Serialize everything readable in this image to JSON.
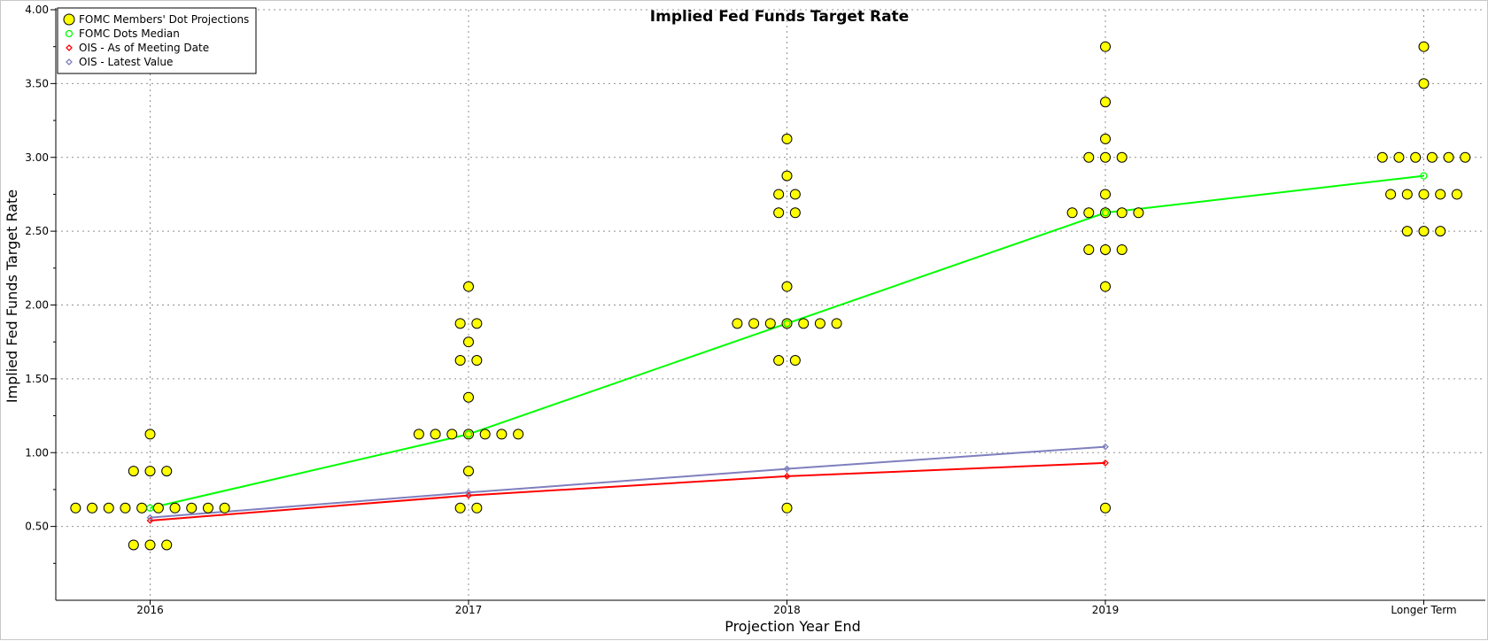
{
  "chart_data": {
    "type": "scatter",
    "title": "Implied Fed Funds Target Rate",
    "xlabel": "Projection Year End",
    "ylabel": "Implied Fed Funds Target Rate",
    "categories": [
      "2016",
      "2017",
      "2018",
      "2019",
      "Longer Term"
    ],
    "ylim": [
      0.0,
      4.0
    ],
    "yticks": [
      "0.50",
      "1.00",
      "1.50",
      "2.00",
      "2.50",
      "3.00",
      "3.50",
      "4.00"
    ],
    "grid": true,
    "legend_position": "top-left",
    "dot_projections": {
      "name": "FOMC Members' Dot Projections",
      "color": "#ffff00",
      "groups": [
        {
          "category": "2016",
          "rows": [
            {
              "value": 1.125,
              "count": 1
            },
            {
              "value": 0.875,
              "count": 3
            },
            {
              "value": 0.625,
              "count": 10
            },
            {
              "value": 0.375,
              "count": 3
            }
          ]
        },
        {
          "category": "2017",
          "rows": [
            {
              "value": 2.125,
              "count": 1
            },
            {
              "value": 1.875,
              "count": 2
            },
            {
              "value": 1.75,
              "count": 1
            },
            {
              "value": 1.625,
              "count": 2
            },
            {
              "value": 1.375,
              "count": 1
            },
            {
              "value": 1.125,
              "count": 7
            },
            {
              "value": 0.875,
              "count": 1
            },
            {
              "value": 0.625,
              "count": 2
            }
          ]
        },
        {
          "category": "2018",
          "rows": [
            {
              "value": 3.125,
              "count": 1
            },
            {
              "value": 2.875,
              "count": 1
            },
            {
              "value": 2.75,
              "count": 2
            },
            {
              "value": 2.625,
              "count": 2
            },
            {
              "value": 2.125,
              "count": 1
            },
            {
              "value": 1.875,
              "count": 7
            },
            {
              "value": 1.625,
              "count": 2
            },
            {
              "value": 0.625,
              "count": 1
            }
          ]
        },
        {
          "category": "2019",
          "rows": [
            {
              "value": 3.75,
              "count": 1
            },
            {
              "value": 3.375,
              "count": 1
            },
            {
              "value": 3.125,
              "count": 1
            },
            {
              "value": 3.0,
              "count": 3
            },
            {
              "value": 2.75,
              "count": 1
            },
            {
              "value": 2.625,
              "count": 5
            },
            {
              "value": 2.375,
              "count": 3
            },
            {
              "value": 2.125,
              "count": 1
            },
            {
              "value": 0.625,
              "count": 1
            }
          ]
        },
        {
          "category": "Longer Term",
          "rows": [
            {
              "value": 3.75,
              "count": 1
            },
            {
              "value": 3.5,
              "count": 1
            },
            {
              "value": 3.0,
              "count": 6
            },
            {
              "value": 2.75,
              "count": 5
            },
            {
              "value": 2.5,
              "count": 3
            }
          ]
        }
      ]
    },
    "series": [
      {
        "name": "FOMC Dots Median",
        "color": "#00ff00",
        "marker": "circle",
        "categories": [
          "2016",
          "2017",
          "2018",
          "2019",
          "Longer Term"
        ],
        "values": [
          0.625,
          1.125,
          1.875,
          2.625,
          2.875
        ]
      },
      {
        "name": "OIS - As of Meeting Date",
        "color": "#ff0000",
        "marker": "diamond",
        "categories": [
          "2016",
          "2017",
          "2018",
          "2019"
        ],
        "values": [
          0.54,
          0.71,
          0.84,
          0.93
        ]
      },
      {
        "name": "OIS - Latest Value",
        "color": "#7f7fbf",
        "marker": "diamond",
        "categories": [
          "2016",
          "2017",
          "2018",
          "2019"
        ],
        "values": [
          0.56,
          0.73,
          0.89,
          1.04
        ]
      }
    ]
  }
}
